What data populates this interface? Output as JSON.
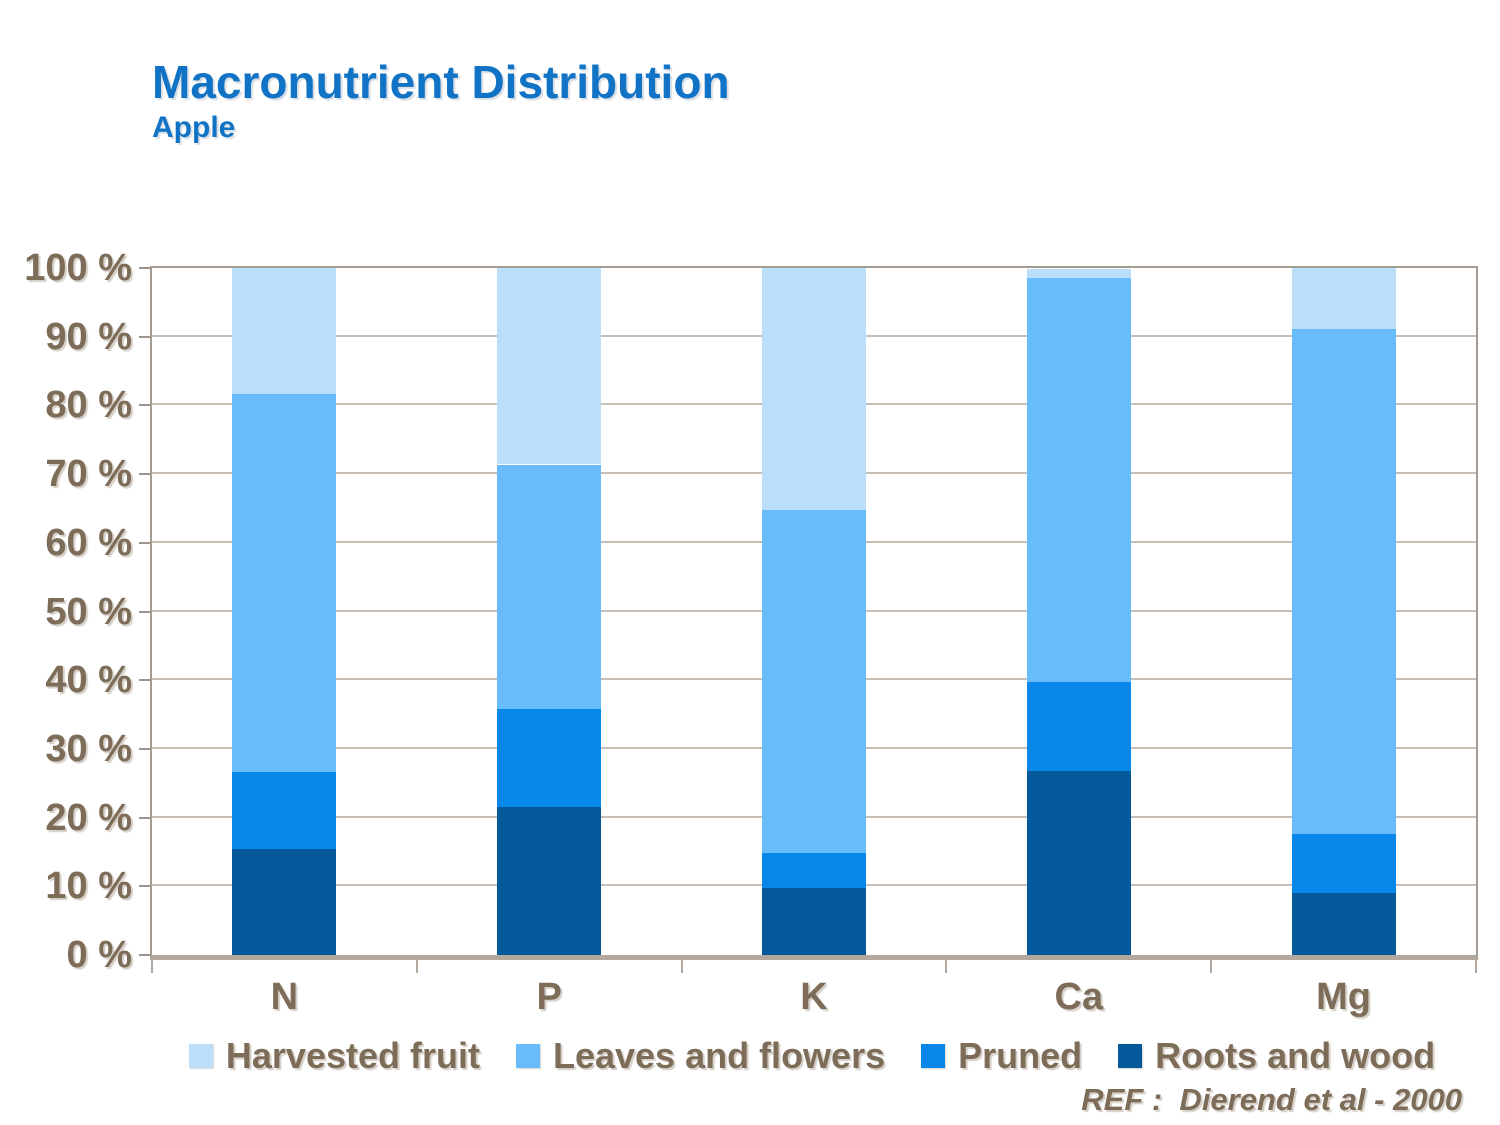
{
  "header": {
    "title": "Macronutrient Distribution",
    "subtitle": "Apple"
  },
  "chart_data": {
    "type": "bar",
    "stacked": true,
    "title": "Macronutrient Distribution",
    "subtitle": "Apple",
    "categories": [
      "N",
      "P",
      "K",
      "Ca",
      "Mg"
    ],
    "series": [
      {
        "name": "Roots and wood",
        "color": "#04599B",
        "values": [
          15.5,
          21.6,
          9.8,
          26.8,
          9.0
        ]
      },
      {
        "name": "Pruned",
        "color": "#0787E8",
        "values": [
          11.2,
          14.2,
          5.0,
          13.0,
          8.6
        ]
      },
      {
        "name": "Leaves and flowers",
        "color": "#68BCFA",
        "values": [
          55.0,
          35.6,
          50.0,
          58.8,
          73.5
        ]
      },
      {
        "name": "Harvested fruit",
        "color": "#BBDEFB",
        "values": [
          18.3,
          28.6,
          35.2,
          1.2,
          8.9
        ]
      }
    ],
    "legend_order": [
      "Harvested fruit",
      "Leaves and flowers",
      "Pruned",
      "Roots and wood"
    ],
    "legend_position": "bottom",
    "xlabel": "",
    "ylabel": "",
    "ylim": [
      0,
      100
    ],
    "ytick_step": 10,
    "yticks": [
      "0 %",
      "10 %",
      "20 %",
      "30 %",
      "40 %",
      "50 %",
      "60 %",
      "70 %",
      "80 %",
      "90 %",
      "100 %"
    ],
    "grid": true
  },
  "colors": {
    "title_blue": "#1173C5",
    "axis_text": "#7D6C58",
    "gridline": "#C7BEB5",
    "plot_border": "#A39A90",
    "axis_band": "#B2A89E"
  },
  "footer": {
    "ref_label": "REF :  Dierend et al - 2000"
  }
}
